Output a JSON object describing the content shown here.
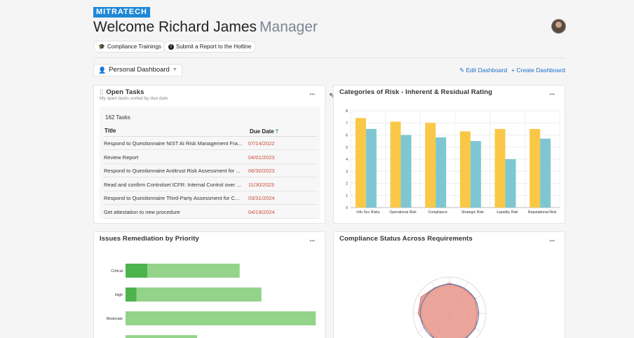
{
  "header": {
    "logo": "MITRATECH",
    "welcome": "Welcome Richard James",
    "role": "Manager"
  },
  "links": {
    "trainings": "Compliance Trainings",
    "hotline": "Submit a Report to the Hotline"
  },
  "dashboard": {
    "selected": "Personal Dashboard",
    "edit": "Edit Dashboard",
    "create": "Create Dashboard"
  },
  "tasks": {
    "title": "Open Tasks",
    "subtitle": "My open tasks sorted by due date",
    "count": "162 Tasks",
    "col_title": "Title",
    "col_due": "Due Date",
    "rows": [
      {
        "title": "Respond to Questionnaire NIST AI Risk Management Fra...",
        "due": "07/14/2022"
      },
      {
        "title": "Review Report",
        "due": "04/01/2023"
      },
      {
        "title": "Respond to Questionnaire Antitrust Risk Assessment for ...",
        "due": "06/30/2023"
      },
      {
        "title": "Read and confirm Controlset ICFR: Internal Control over ...",
        "due": "11/30/2023"
      },
      {
        "title": "Respond to Questionnaire Third-Party Assessment for C...",
        "due": "03/31/2024"
      },
      {
        "title": "Get attestation to new procedure",
        "due": "04/19/2024"
      }
    ]
  },
  "risk_card": {
    "title": "Categories of Risk - Inherent & Residual Rating"
  },
  "issues_card": {
    "title": "Issues Remediation by Priority"
  },
  "compliance_card": {
    "title": "Compliance Status Across Requirements"
  },
  "more_label": "...",
  "colors": {
    "inherent": "#f9c846",
    "residual": "#7ec7d2",
    "issues_dark": "#4db34d",
    "issues_light": "#93d38a",
    "radar_fill": "#e8958a",
    "radar_line": "#3a6fb0"
  },
  "chart_data": [
    {
      "type": "bar",
      "categories": [
        "Info Sec Risks",
        "Operational Risk",
        "Compliance",
        "Strategic Risk",
        "Liquidity Risk",
        "Reputational Risk"
      ],
      "series": [
        {
          "values": [
            7.4,
            7.1,
            7.0,
            6.3,
            6.5,
            6.5
          ]
        },
        {
          "values": [
            6.5,
            6.0,
            5.8,
            5.5,
            4.0,
            5.7
          ]
        }
      ],
      "yticks": [
        "0",
        "1",
        "2",
        "3",
        "4",
        "5",
        "6",
        "7",
        "8"
      ],
      "ylim": [
        0,
        8
      ],
      "grid": true
    },
    {
      "type": "bar",
      "orientation": "horizontal",
      "categories": [
        "Critical",
        "High",
        "Moderate"
      ],
      "series": [
        {
          "values": [
            2,
            1,
            0
          ]
        },
        {
          "values": [
            8.5,
            11.5,
            17.5
          ]
        }
      ],
      "stacked": true
    },
    {
      "type": "radar"
    }
  ]
}
